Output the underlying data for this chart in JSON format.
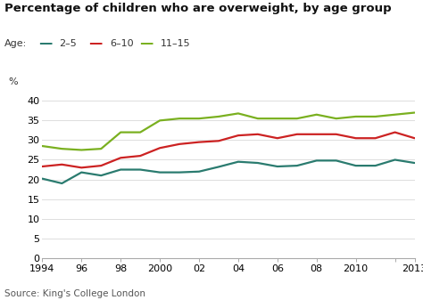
{
  "title": "Percentage of children who are overweight, by age group",
  "ylabel": "%",
  "source": "Source: King's College London",
  "legend_labels": [
    "2–5",
    "6–10",
    "11–15"
  ],
  "line_colors": [
    "#2a7b6f",
    "#cc2222",
    "#7ab020"
  ],
  "years": [
    1994,
    1995,
    1996,
    1997,
    1998,
    1999,
    2000,
    2001,
    2002,
    2003,
    2004,
    2005,
    2006,
    2007,
    2008,
    2009,
    2010,
    2011,
    2012,
    2013
  ],
  "age_2_5": [
    20.2,
    19.0,
    21.8,
    21.0,
    22.5,
    22.5,
    21.8,
    21.8,
    22.0,
    23.2,
    24.5,
    24.2,
    23.3,
    23.5,
    24.8,
    24.8,
    23.5,
    23.5,
    25.0,
    24.2
  ],
  "age_6_10": [
    23.3,
    23.8,
    23.0,
    23.5,
    25.5,
    26.0,
    28.0,
    29.0,
    29.5,
    29.8,
    31.2,
    31.5,
    30.5,
    31.5,
    31.5,
    31.5,
    30.5,
    30.5,
    32.0,
    30.5
  ],
  "age_11_15": [
    28.5,
    27.8,
    27.5,
    27.8,
    32.0,
    32.0,
    35.0,
    35.5,
    35.5,
    36.0,
    36.8,
    35.5,
    35.5,
    35.5,
    36.5,
    35.5,
    36.0,
    36.0,
    36.5,
    37.0
  ],
  "xlim": [
    1994,
    2013
  ],
  "ylim": [
    0,
    42
  ],
  "yticks": [
    0,
    5,
    10,
    15,
    20,
    25,
    30,
    35,
    40
  ],
  "xtick_labels": [
    "1994",
    "96",
    "98",
    "2000",
    "02",
    "04",
    "06",
    "08",
    "2010",
    "",
    "2013"
  ],
  "xtick_positions": [
    1994,
    1996,
    1998,
    2000,
    2002,
    2004,
    2006,
    2008,
    2010,
    2012,
    2013
  ],
  "background_color": "#ffffff",
  "plot_bg_color": "#ffffff",
  "grid_color": "#dddddd",
  "line_width": 1.6,
  "title_fontsize": 9.5,
  "tick_fontsize": 8,
  "source_fontsize": 7.5
}
